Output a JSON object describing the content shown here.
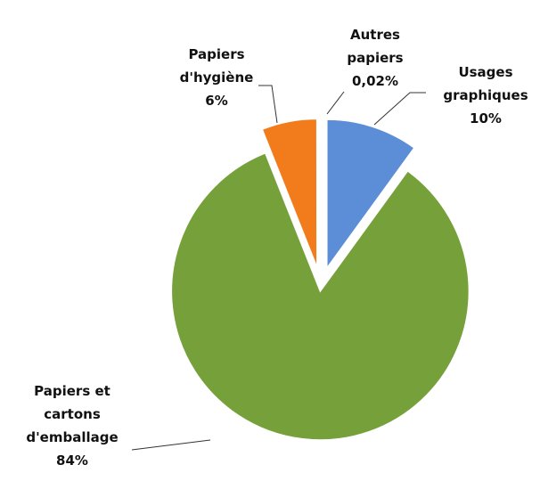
{
  "chart_data": {
    "type": "pie",
    "categories": [
      "Usages graphiques",
      "Papiers et cartons d'emballage",
      "Papiers d'hygiène",
      "Autres papiers"
    ],
    "values": [
      10,
      84,
      6,
      0.02
    ],
    "value_labels": [
      "10%",
      "84%",
      "6%",
      "0,02%"
    ],
    "colors": [
      "#5b8ed6",
      "#76a13a",
      "#f27b1c",
      "#a5a5a5"
    ]
  }
}
